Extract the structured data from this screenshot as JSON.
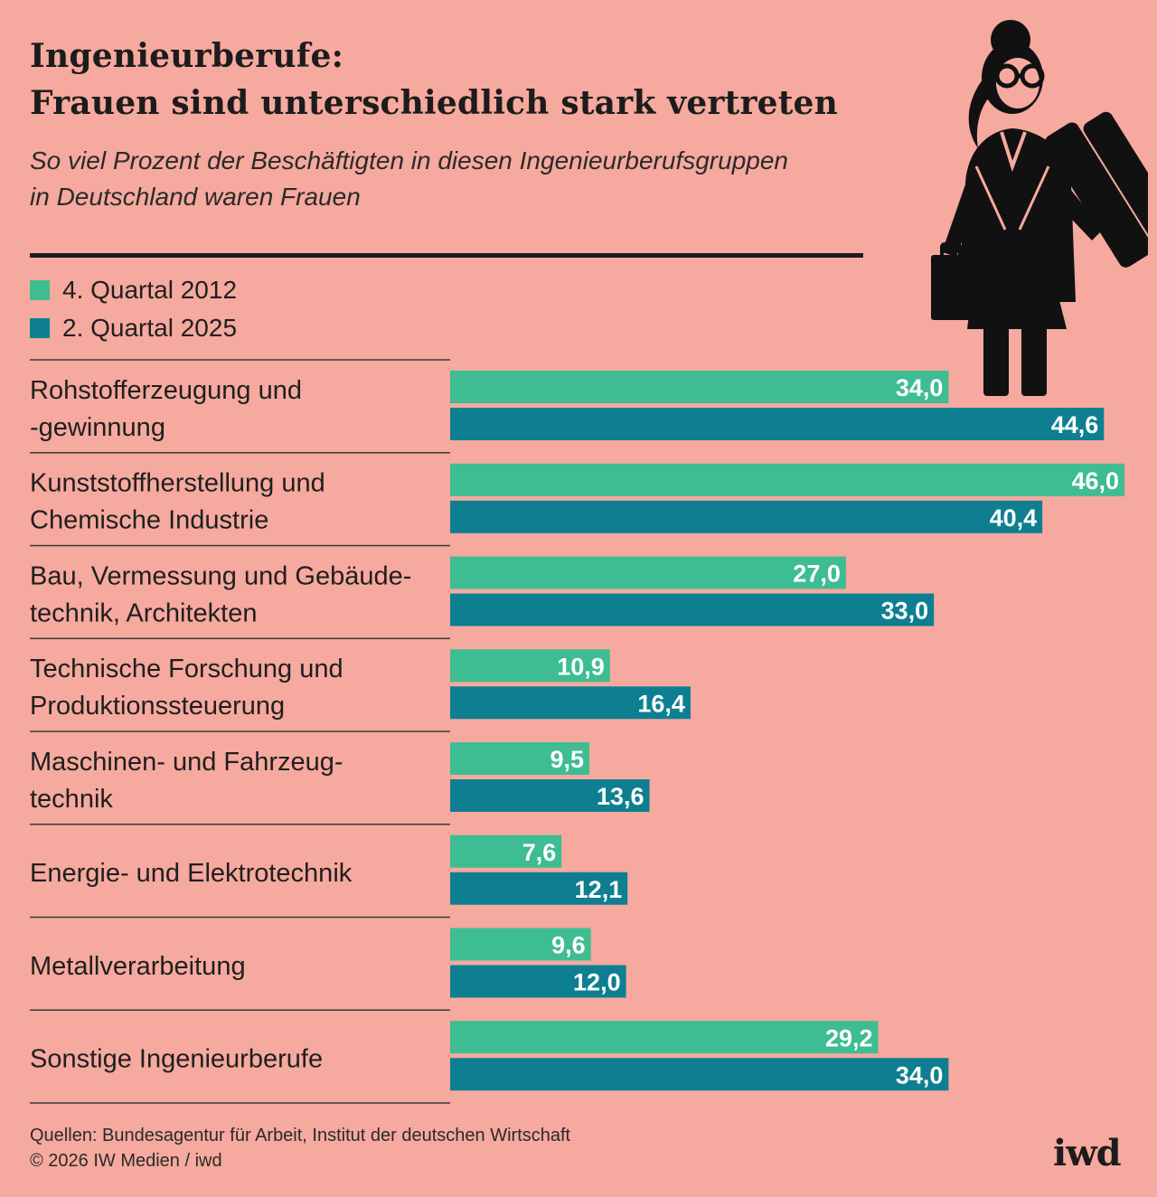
{
  "title_lines": [
    "Ingenieurberufe:",
    "Frauen sind unterschiedlich stark vertreten"
  ],
  "subtitle_lines": [
    "So viel Prozent der Beschäftigten in diesen Ingenieurberufsgruppen",
    "in Deutschland waren Frauen"
  ],
  "source_lines": [
    "Quellen: Bundesagentur für Arbeit, Institut der deutschen Wirtschaft",
    "© 2026 IW Medien / iwd"
  ],
  "logo": "iwd",
  "colors": {
    "background": "#f6a99e",
    "series_2012": "#3dbd91",
    "series_2025": "#0e7f91",
    "text_dark": "#1c1c1c",
    "value_label": "#ffffff"
  },
  "icons": [
    "businesswoman-with-briefcase-and-rolled-plans-icon"
  ],
  "chart_data": {
    "type": "bar",
    "orientation": "horizontal",
    "categories": [
      [
        "Rohstofferzeugung und",
        "-gewinnung"
      ],
      [
        "Kunststoffherstellung und",
        "Chemische Industrie"
      ],
      [
        "Bau, Vermessung und Gebäude-",
        "technik, Architekten"
      ],
      [
        "Technische Forschung und",
        "Produktionssteuerung"
      ],
      [
        "Maschinen- und Fahrzeug-",
        "technik"
      ],
      [
        "Energie- und Elektrotechnik"
      ],
      [
        "Metallverarbeitung"
      ],
      [
        "Sonstige Ingenieurberufe"
      ]
    ],
    "series": [
      {
        "name": "4. Quartal 2012",
        "color": "#3dbd91",
        "values": [
          34.0,
          46.0,
          27.0,
          10.9,
          9.5,
          7.6,
          9.6,
          29.2
        ],
        "labels": [
          "34,0",
          "46,0",
          "27,0",
          "10,9",
          "9,5",
          "7,6",
          "9,6",
          "29,2"
        ]
      },
      {
        "name": "2. Quartal 2025",
        "color": "#0e7f91",
        "values": [
          44.6,
          40.4,
          33.0,
          16.4,
          13.6,
          12.1,
          12.0,
          34.0
        ],
        "labels": [
          "44,6",
          "40,4",
          "33,0",
          "16,4",
          "13,6",
          "12,1",
          "12,0",
          "34,0"
        ]
      }
    ],
    "xlim": [
      0,
      46.0
    ],
    "axes_visible": false,
    "grid": false,
    "legend_position": "top-left",
    "value_labels": "inside-bar-end"
  }
}
